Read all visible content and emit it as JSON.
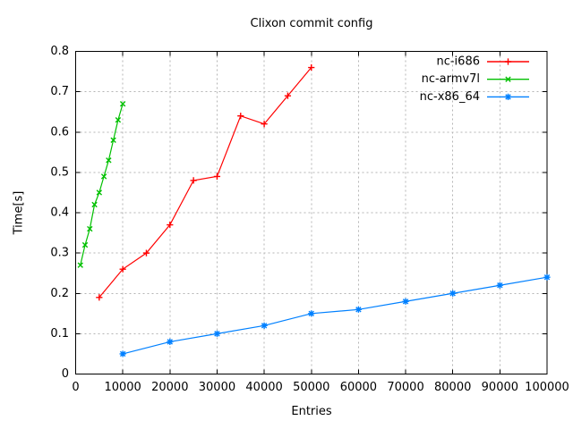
{
  "chart_data": {
    "type": "line",
    "title": "Clixon commit config",
    "xlabel": "Entries",
    "ylabel": "Time[s]",
    "xlim": [
      0,
      100000
    ],
    "ylim": [
      0,
      0.8
    ],
    "x_ticks": [
      0,
      10000,
      20000,
      30000,
      40000,
      50000,
      60000,
      70000,
      80000,
      90000,
      100000
    ],
    "x_tick_labels": [
      "0",
      "10000",
      "20000",
      "30000",
      "40000",
      "50000",
      "60000",
      "70000",
      "80000",
      "90000",
      "100000"
    ],
    "y_ticks": [
      0,
      0.1,
      0.2,
      0.3,
      0.4,
      0.5,
      0.6,
      0.7,
      0.8
    ],
    "y_tick_labels": [
      "0",
      "0.1",
      "0.2",
      "0.3",
      "0.4",
      "0.5",
      "0.6",
      "0.7",
      "0.8"
    ],
    "grid": true,
    "legend_position": "top-right-inside",
    "background_color": "#ffffff",
    "grid_color": "#b4b4b4",
    "axis_color": "#000000",
    "series": [
      {
        "name": "nc-i686",
        "color": "#ff0000",
        "marker": "plus",
        "x": [
          5000,
          10000,
          15000,
          20000,
          25000,
          30000,
          35000,
          40000,
          45000,
          50000
        ],
        "y": [
          0.19,
          0.26,
          0.3,
          0.37,
          0.48,
          0.49,
          0.64,
          0.62,
          0.69,
          0.76
        ]
      },
      {
        "name": "nc-armv7l",
        "color": "#00c000",
        "marker": "cross",
        "x": [
          1000,
          2000,
          3000,
          4000,
          5000,
          6000,
          7000,
          8000,
          9000,
          10000
        ],
        "y": [
          0.27,
          0.32,
          0.36,
          0.42,
          0.45,
          0.49,
          0.53,
          0.58,
          0.63,
          0.67
        ]
      },
      {
        "name": "nc-x86_64",
        "color": "#0080ff",
        "marker": "asterisk",
        "x": [
          10000,
          20000,
          30000,
          40000,
          50000,
          60000,
          70000,
          80000,
          90000,
          100000
        ],
        "y": [
          0.05,
          0.08,
          0.1,
          0.12,
          0.15,
          0.16,
          0.18,
          0.2,
          0.22,
          0.24
        ]
      }
    ]
  }
}
